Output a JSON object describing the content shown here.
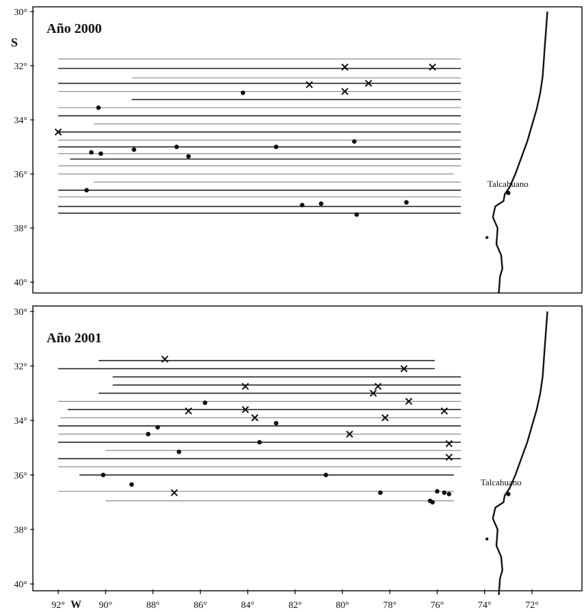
{
  "chart_data": [
    {
      "type": "map",
      "title": "Año 2000",
      "lat_label": "S",
      "port": "Talcahuano",
      "lat_ticks": [
        "30°",
        "32°",
        "34°",
        "36°",
        "38°",
        "40°"
      ],
      "lat_range": [
        30,
        40.4
      ],
      "lon_range": [
        -92.3,
        -71.3
      ],
      "transects": [
        {
          "lat": 31.75,
          "lon_start": -92.0,
          "lon_end": -75.0,
          "style": "thin"
        },
        {
          "lat": 32.1,
          "lon_start": -92.0,
          "lon_end": -75.0,
          "style": "thick"
        },
        {
          "lat": 32.45,
          "lon_start": -88.9,
          "lon_end": -75.0,
          "style": "thin"
        },
        {
          "lat": 32.65,
          "lon_start": -92.0,
          "lon_end": -75.0,
          "style": "thick"
        },
        {
          "lat": 32.95,
          "lon_start": -92.0,
          "lon_end": -75.0,
          "style": "thin"
        },
        {
          "lat": 33.25,
          "lon_start": -88.9,
          "lon_end": -75.0,
          "style": "thick"
        },
        {
          "lat": 33.55,
          "lon_start": -92.0,
          "lon_end": -75.0,
          "style": "thin"
        },
        {
          "lat": 33.85,
          "lon_start": -92.0,
          "lon_end": -75.0,
          "style": "thick"
        },
        {
          "lat": 34.15,
          "lon_start": -90.5,
          "lon_end": -75.0,
          "style": "thin"
        },
        {
          "lat": 34.45,
          "lon_start": -92.0,
          "lon_end": -75.0,
          "style": "thick"
        },
        {
          "lat": 34.75,
          "lon_start": -92.0,
          "lon_end": -75.0,
          "style": "thin"
        },
        {
          "lat": 35.0,
          "lon_start": -92.0,
          "lon_end": -75.0,
          "style": "thick"
        },
        {
          "lat": 35.25,
          "lon_start": -92.0,
          "lon_end": -75.0,
          "style": "thin"
        },
        {
          "lat": 35.45,
          "lon_start": -91.5,
          "lon_end": -75.0,
          "style": "thick"
        },
        {
          "lat": 35.7,
          "lon_start": -92.0,
          "lon_end": -75.0,
          "style": "thin"
        },
        {
          "lat": 36.0,
          "lon_start": -92.0,
          "lon_end": -75.3,
          "style": "thin"
        },
        {
          "lat": 36.3,
          "lon_start": -90.5,
          "lon_end": -75.0,
          "style": "thin"
        },
        {
          "lat": 36.6,
          "lon_start": -92.0,
          "lon_end": -75.0,
          "style": "thick"
        },
        {
          "lat": 36.85,
          "lon_start": -92.0,
          "lon_end": -75.0,
          "style": "thin"
        },
        {
          "lat": 37.2,
          "lon_start": -92.0,
          "lon_end": -75.0,
          "style": "thick"
        },
        {
          "lat": 37.45,
          "lon_start": -92.0,
          "lon_end": -75.0,
          "style": "thick"
        }
      ],
      "markers": [
        {
          "lon": -79.9,
          "lat": 32.05,
          "symbol": "x"
        },
        {
          "lon": -76.2,
          "lat": 32.05,
          "symbol": "x"
        },
        {
          "lon": -81.4,
          "lat": 32.7,
          "symbol": "x"
        },
        {
          "lon": -78.9,
          "lat": 32.65,
          "symbol": "x"
        },
        {
          "lon": -79.9,
          "lat": 32.95,
          "symbol": "x"
        },
        {
          "lon": -84.2,
          "lat": 33.0,
          "symbol": "dot"
        },
        {
          "lon": -90.3,
          "lat": 33.55,
          "symbol": "dot"
        },
        {
          "lon": -92.0,
          "lat": 34.45,
          "symbol": "x"
        },
        {
          "lon": -79.5,
          "lat": 34.8,
          "symbol": "dot"
        },
        {
          "lon": -87.0,
          "lat": 35.0,
          "symbol": "dot"
        },
        {
          "lon": -82.8,
          "lat": 35.0,
          "symbol": "dot"
        },
        {
          "lon": -88.8,
          "lat": 35.1,
          "symbol": "dot"
        },
        {
          "lon": -90.6,
          "lat": 35.2,
          "symbol": "dot"
        },
        {
          "lon": -90.2,
          "lat": 35.25,
          "symbol": "dot"
        },
        {
          "lon": -86.5,
          "lat": 35.35,
          "symbol": "dot"
        },
        {
          "lon": -90.8,
          "lat": 36.6,
          "symbol": "dot"
        },
        {
          "lon": -77.3,
          "lat": 37.05,
          "symbol": "dot"
        },
        {
          "lon": -80.9,
          "lat": 37.1,
          "symbol": "dot"
        },
        {
          "lon": -81.7,
          "lat": 37.15,
          "symbol": "dot"
        },
        {
          "lon": -79.4,
          "lat": 37.5,
          "symbol": "dot"
        }
      ]
    },
    {
      "type": "map",
      "title": "Año 2001",
      "port": "Talcahuano",
      "lat_ticks": [
        "30°",
        "32°",
        "34°",
        "36°",
        "38°",
        "40°"
      ],
      "lon_ticks": [
        "92°",
        "90°",
        "88°",
        "86°",
        "84°",
        "82°",
        "80°",
        "78°",
        "76°",
        "74°",
        "72°"
      ],
      "lon_label": "W",
      "lat_range": [
        30,
        40.2
      ],
      "lon_range": [
        -92.3,
        -71.3
      ],
      "transects": [
        {
          "lat": 31.8,
          "lon_start": -90.3,
          "lon_end": -76.1,
          "style": "thick"
        },
        {
          "lat": 32.1,
          "lon_start": -92.0,
          "lon_end": -76.1,
          "style": "thick"
        },
        {
          "lat": 32.4,
          "lon_start": -89.7,
          "lon_end": -75.0,
          "style": "thick"
        },
        {
          "lat": 32.7,
          "lon_start": -89.7,
          "lon_end": -75.0,
          "style": "thick"
        },
        {
          "lat": 33.0,
          "lon_start": -90.3,
          "lon_end": -75.0,
          "style": "thick"
        },
        {
          "lat": 33.3,
          "lon_start": -92.0,
          "lon_end": -75.0,
          "style": "thin"
        },
        {
          "lat": 33.6,
          "lon_start": -91.6,
          "lon_end": -75.0,
          "style": "thick"
        },
        {
          "lat": 33.9,
          "lon_start": -91.9,
          "lon_end": -75.0,
          "style": "thin"
        },
        {
          "lat": 34.2,
          "lon_start": -92.0,
          "lon_end": -75.0,
          "style": "thick"
        },
        {
          "lat": 34.5,
          "lon_start": -92.0,
          "lon_end": -75.0,
          "style": "thin"
        },
        {
          "lat": 34.8,
          "lon_start": -92.0,
          "lon_end": -75.0,
          "style": "thick"
        },
        {
          "lat": 35.1,
          "lon_start": -90.0,
          "lon_end": -75.0,
          "style": "thin"
        },
        {
          "lat": 35.4,
          "lon_start": -92.0,
          "lon_end": -75.0,
          "style": "thick"
        },
        {
          "lat": 35.7,
          "lon_start": -92.0,
          "lon_end": -75.0,
          "style": "thin"
        },
        {
          "lat": 36.0,
          "lon_start": -91.1,
          "lon_end": -75.3,
          "style": "thick"
        },
        {
          "lat": 36.6,
          "lon_start": -92.0,
          "lon_end": -75.3,
          "style": "thin"
        },
        {
          "lat": 36.95,
          "lon_start": -90.0,
          "lon_end": -75.3,
          "style": "thin"
        }
      ],
      "markers": [
        {
          "lon": -87.5,
          "lat": 31.75,
          "symbol": "x"
        },
        {
          "lon": -77.4,
          "lat": 32.1,
          "symbol": "x"
        },
        {
          "lon": -84.1,
          "lat": 32.75,
          "symbol": "x"
        },
        {
          "lon": -78.5,
          "lat": 32.75,
          "symbol": "x"
        },
        {
          "lon": -78.7,
          "lat": 33.0,
          "symbol": "x"
        },
        {
          "lon": -77.2,
          "lat": 33.3,
          "symbol": "x"
        },
        {
          "lon": -85.8,
          "lat": 33.35,
          "symbol": "dot"
        },
        {
          "lon": -86.5,
          "lat": 33.65,
          "symbol": "x"
        },
        {
          "lon": -84.1,
          "lat": 33.6,
          "symbol": "x"
        },
        {
          "lon": -75.7,
          "lat": 33.65,
          "symbol": "x"
        },
        {
          "lon": -83.7,
          "lat": 33.9,
          "symbol": "x"
        },
        {
          "lon": -78.2,
          "lat": 33.9,
          "symbol": "x"
        },
        {
          "lon": -82.8,
          "lat": 34.1,
          "symbol": "dot"
        },
        {
          "lon": -87.8,
          "lat": 34.25,
          "symbol": "dot"
        },
        {
          "lon": -88.2,
          "lat": 34.5,
          "symbol": "dot"
        },
        {
          "lon": -79.7,
          "lat": 34.5,
          "symbol": "x"
        },
        {
          "lon": -83.5,
          "lat": 34.8,
          "symbol": "dot"
        },
        {
          "lon": -75.5,
          "lat": 34.85,
          "symbol": "x"
        },
        {
          "lon": -86.9,
          "lat": 35.15,
          "symbol": "dot"
        },
        {
          "lon": -75.5,
          "lat": 35.35,
          "symbol": "x"
        },
        {
          "lon": -90.1,
          "lat": 36.0,
          "symbol": "dot"
        },
        {
          "lon": -80.7,
          "lat": 36.0,
          "symbol": "dot"
        },
        {
          "lon": -88.9,
          "lat": 36.35,
          "symbol": "dot"
        },
        {
          "lon": -87.1,
          "lat": 36.65,
          "symbol": "x"
        },
        {
          "lon": -78.4,
          "lat": 36.65,
          "symbol": "dot"
        },
        {
          "lon": -76.0,
          "lat": 36.6,
          "symbol": "dot"
        },
        {
          "lon": -75.7,
          "lat": 36.65,
          "symbol": "dot"
        },
        {
          "lon": -75.5,
          "lat": 36.7,
          "symbol": "dot"
        },
        {
          "lon": -76.3,
          "lat": 36.95,
          "symbol": "dot"
        },
        {
          "lon": -76.2,
          "lat": 37.0,
          "symbol": "dot"
        }
      ]
    }
  ]
}
